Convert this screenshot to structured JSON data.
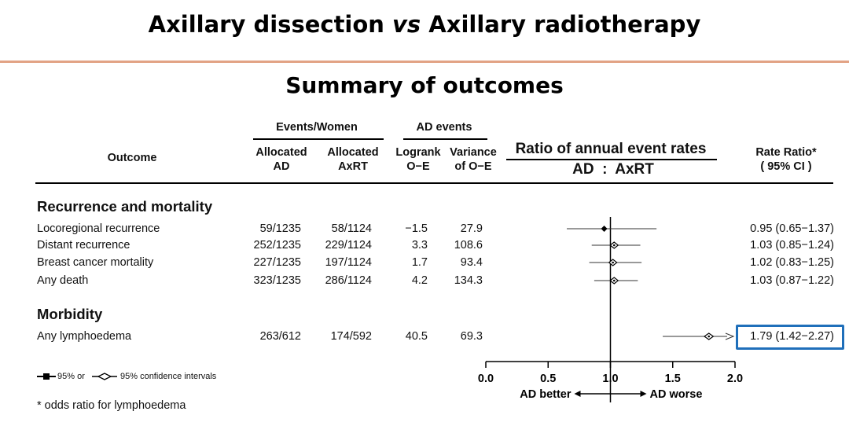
{
  "title": {
    "part1": "Axillary dissection ",
    "vs": "vs",
    "part2": " Axillary radiotherapy"
  },
  "subtitle": "Summary of outcomes",
  "headers": {
    "outcome": "Outcome",
    "events_women": "Events/Women",
    "allocated_ad_1": "Allocated",
    "allocated_ad_2": "AD",
    "allocated_axrt_1": "Allocated",
    "allocated_axrt_2": "AxRT",
    "ad_events": "AD events",
    "logrank_1": "Logrank",
    "logrank_2": "O−E",
    "variance_1": "Variance",
    "variance_2": "of O−E",
    "ratio_title": "Ratio of annual event rates",
    "ratio_sub": "AD  :  AxRT",
    "rate_ratio_1": "Rate Ratio*",
    "rate_ratio_2": "( 95% CI )"
  },
  "sections": [
    {
      "label": "Recurrence and mortality",
      "rows": [
        {
          "outcome": "Locoregional recurrence",
          "ad": "59/1235",
          "axrt": "58/1124",
          "oe": "−1.5",
          "var": "27.9",
          "rr": "0.95 (0.65−1.37)"
        },
        {
          "outcome": "Distant recurrence",
          "ad": "252/1235",
          "axrt": "229/1124",
          "oe": "3.3",
          "var": "108.6",
          "rr": "1.03 (0.85−1.24)"
        },
        {
          "outcome": "Breast cancer mortality",
          "ad": "227/1235",
          "axrt": "197/1124",
          "oe": "1.7",
          "var": "93.4",
          "rr": "1.02 (0.83−1.25)"
        },
        {
          "outcome": "Any death",
          "ad": "323/1235",
          "axrt": "286/1124",
          "oe": "4.2",
          "var": "134.3",
          "rr": "1.03 (0.87−1.22)"
        }
      ]
    },
    {
      "label": "Morbidity",
      "rows": [
        {
          "outcome": "Any lymphoedema",
          "ad": "263/612",
          "axrt": "174/592",
          "oe": "40.5",
          "var": "69.3",
          "rr": "1.79 (1.42−2.27)"
        }
      ]
    }
  ],
  "legend": {
    "square_label": "95% or",
    "diamond_label": "95% confidence intervals"
  },
  "footnote": "* odds ratio for lymphoedema",
  "highlight_color": "#1f6fba",
  "accent_rule_color": "#e2a385",
  "chart_data": {
    "type": "forest",
    "x": {
      "min": 0.0,
      "max": 2.0,
      "ticks": [
        0.0,
        0.5,
        1.0,
        1.5,
        2.0
      ],
      "tick_labels": [
        "0.0",
        "0.5",
        "1.0",
        "1.5",
        "2.0"
      ],
      "reference": 1.0
    },
    "axis_labels": {
      "left": "AD better",
      "right": "AD worse"
    },
    "series": [
      {
        "name": "Locoregional recurrence",
        "estimate": 0.95,
        "ci": [
          0.65,
          1.37
        ],
        "marker": "square"
      },
      {
        "name": "Distant recurrence",
        "estimate": 1.03,
        "ci": [
          0.85,
          1.24
        ],
        "marker": "diamond"
      },
      {
        "name": "Breast cancer mortality",
        "estimate": 1.02,
        "ci": [
          0.83,
          1.25
        ],
        "marker": "diamond"
      },
      {
        "name": "Any death",
        "estimate": 1.03,
        "ci": [
          0.87,
          1.22
        ],
        "marker": "diamond"
      },
      {
        "name": "Any lymphoedema",
        "estimate": 1.79,
        "ci": [
          1.42,
          2.27
        ],
        "marker": "diamond",
        "arrow_right": true
      }
    ]
  }
}
